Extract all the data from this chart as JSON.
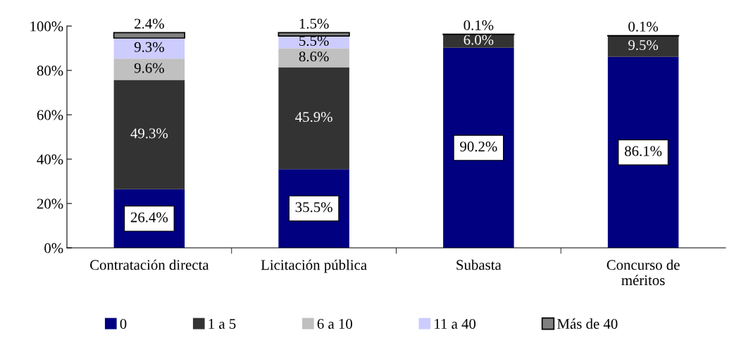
{
  "chart_data": {
    "type": "bar",
    "stacked": true,
    "categories": [
      "Contratación directa",
      "Licitación pública",
      "Subasta",
      "Concurso de\nméritos"
    ],
    "series": [
      {
        "name": "0",
        "color": "#000080",
        "values": [
          26.4,
          35.5,
          90.2,
          86.1
        ],
        "value_labels": [
          "26.4%",
          "35.5%",
          "90.2%",
          "86.1%"
        ]
      },
      {
        "name": "1 a 5",
        "color": "#333333",
        "values": [
          49.3,
          45.9,
          6.0,
          9.5
        ],
        "value_labels": [
          "49.3%",
          "45.9%",
          "6.0%",
          "9.5%"
        ]
      },
      {
        "name": "6 a 10",
        "color": "#c0c0c0",
        "values": [
          9.6,
          8.6,
          null,
          null
        ],
        "value_labels": [
          "9.6%",
          "8.6%",
          null,
          null
        ]
      },
      {
        "name": "11 a 40",
        "color": "#ccccff",
        "values": [
          9.3,
          5.5,
          null,
          null
        ],
        "value_labels": [
          "9.3%",
          "5.5%",
          null,
          null
        ]
      },
      {
        "name": "Más de 40",
        "color": "#808080",
        "values": [
          2.4,
          1.5,
          0.1,
          0.1
        ],
        "value_labels": [
          "2.4%",
          "1.5%",
          "0.1%",
          "0.1%"
        ]
      }
    ],
    "ylim": [
      0,
      100
    ],
    "yticks": [
      {
        "value": 0,
        "label": "0%"
      },
      {
        "value": 20,
        "label": "20%"
      },
      {
        "value": 40,
        "label": "40%"
      },
      {
        "value": 60,
        "label": "60%"
      },
      {
        "value": 80,
        "label": "80%"
      },
      {
        "value": 100,
        "label": "100%"
      }
    ],
    "grid": false,
    "legend": "bottom"
  }
}
